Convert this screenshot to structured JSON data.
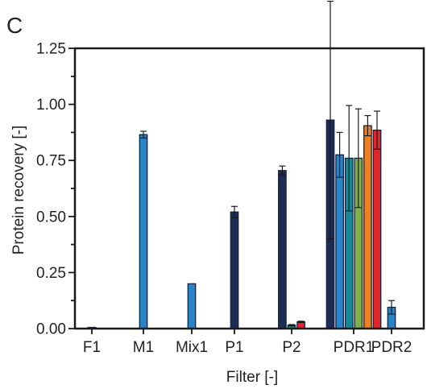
{
  "panel_label": "C",
  "chart_data": {
    "type": "bar",
    "title": "",
    "xlabel": "Filter [-]",
    "ylabel": "Protein recovery [-]",
    "ylim": [
      0,
      1.25
    ],
    "yticks": [
      "0.00",
      "0.25",
      "0.50",
      "0.75",
      "1.00",
      "1.25"
    ],
    "y_minor_step": 0.125,
    "grid": false,
    "categories": [
      "F1",
      "M1",
      "Mix1",
      "P1",
      "P2",
      "PDR1",
      "PDR2"
    ],
    "bar_colors": [
      "#1c2c55",
      "#2a85c8",
      "#138a96",
      "#7fb04a",
      "#f07f1d",
      "#e3242b"
    ],
    "bars": [
      {
        "category": "F1",
        "color_index": 0,
        "value": 0.005,
        "error": 0
      },
      {
        "category": "M1",
        "color_index": 1,
        "value": 0.865,
        "error": 0.015
      },
      {
        "category": "Mix1",
        "color_index": 1,
        "value": 0.2,
        "error": 0
      },
      {
        "category": "P1",
        "color_index": 0,
        "value": 0.52,
        "error": 0.025
      },
      {
        "category": "P2",
        "color_index": 0,
        "value": 0.705,
        "error": 0.02
      },
      {
        "category": "P2",
        "color_index": 2,
        "value": 0.015,
        "error": 0.003
      },
      {
        "category": "P2",
        "color_index": 5,
        "value": 0.03,
        "error": 0.003
      },
      {
        "category": "PDR1",
        "color_index": 0,
        "value": 0.93,
        "error": 0.53
      },
      {
        "category": "PDR1",
        "color_index": 1,
        "value": 0.775,
        "error": 0.1
      },
      {
        "category": "PDR1",
        "color_index": 2,
        "value": 0.76,
        "error": 0.235
      },
      {
        "category": "PDR1",
        "color_index": 3,
        "value": 0.76,
        "error": 0.22
      },
      {
        "category": "PDR1",
        "color_index": 4,
        "value": 0.905,
        "error": 0.045
      },
      {
        "category": "PDR1",
        "color_index": 5,
        "value": 0.885,
        "error": 0.085
      },
      {
        "category": "PDR2",
        "color_index": 1,
        "value": 0.095,
        "error": 0.03
      }
    ]
  }
}
